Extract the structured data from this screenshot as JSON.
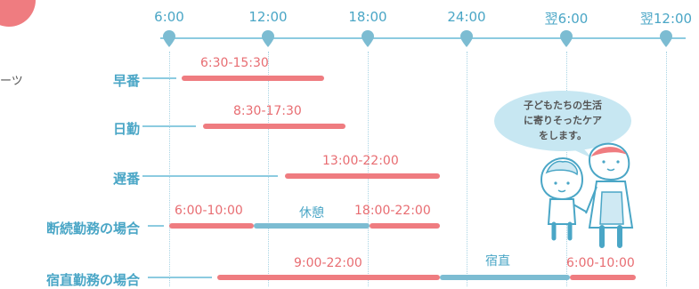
{
  "left_note": "ーツ",
  "axis": {
    "ticks": [
      "6:00",
      "12:00",
      "18:00",
      "24:00",
      "翌6:00",
      "翌12:00"
    ]
  },
  "rows": [
    {
      "label": "早番",
      "segments": [
        {
          "kind": "work",
          "label": "6:30-15:30"
        }
      ]
    },
    {
      "label": "日勤",
      "segments": [
        {
          "kind": "work",
          "label": "8:30-17:30"
        }
      ]
    },
    {
      "label": "遅番",
      "segments": [
        {
          "kind": "work",
          "label": "13:00-22:00"
        }
      ]
    },
    {
      "label": "断続勤務の場合",
      "segments": [
        {
          "kind": "work",
          "label": "6:00-10:00"
        },
        {
          "kind": "rest",
          "label": "休憩"
        },
        {
          "kind": "work",
          "label": "18:00-22:00"
        }
      ]
    },
    {
      "label": "宿直勤務の場合",
      "segments": [
        {
          "kind": "work",
          "label": "9:00-22:00"
        },
        {
          "kind": "rest",
          "label": "宿直"
        },
        {
          "kind": "work",
          "label": "6:00-10:00"
        }
      ]
    }
  ],
  "speech_bubble": {
    "lines": [
      "子どもたちの生活",
      "に寄りそったケア",
      "をします。"
    ]
  },
  "colors": {
    "work": "#ef7c80",
    "rest": "#7cbcd2",
    "axis": "#8ccbe0",
    "label": "#4aa6c6"
  }
}
